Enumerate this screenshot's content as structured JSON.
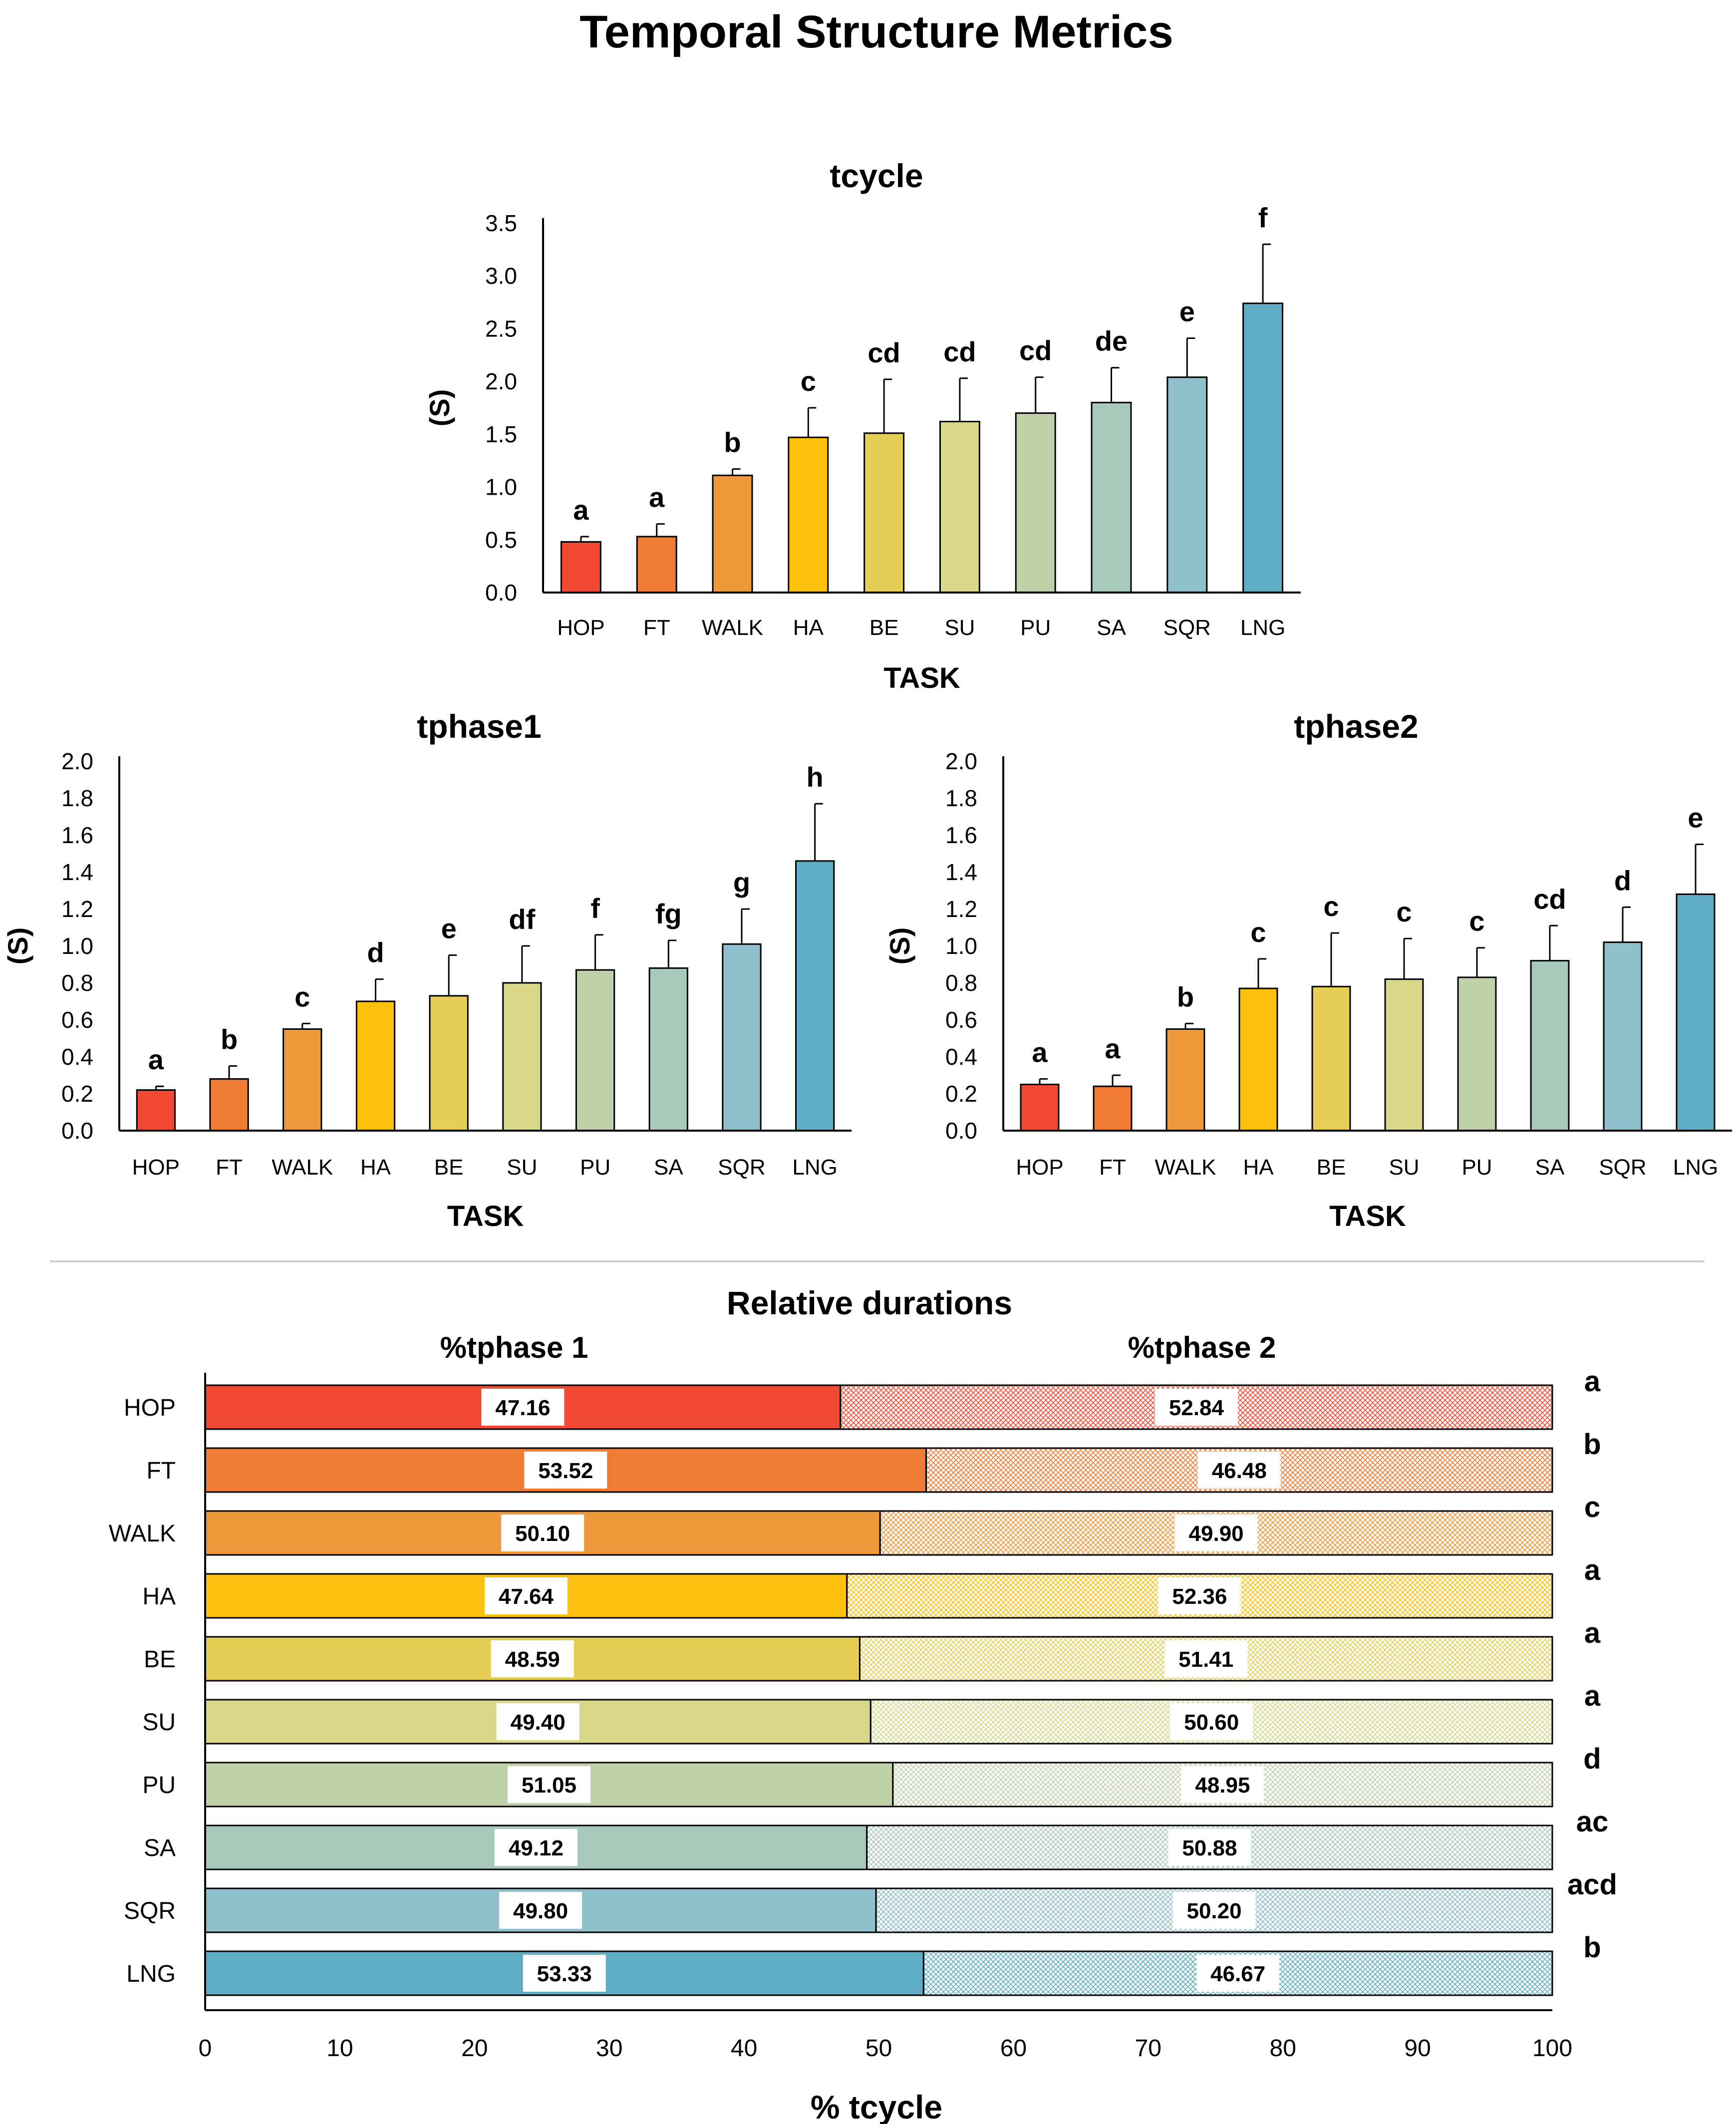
{
  "page_title": "Temporal Structure Metrics",
  "task_order": [
    "HOP",
    "FT",
    "WALK",
    "HA",
    "BE",
    "SU",
    "PU",
    "SA",
    "SQR",
    "LNG"
  ],
  "task_colors": [
    "#f04a35",
    "#f07b35",
    "#ee9a3c",
    "#fcc10e",
    "#e6cd56",
    "#d9d78a",
    "#c1d1a9",
    "#a9c8bc",
    "#8fbfca",
    "#5faec5"
  ],
  "chart_data": [
    {
      "id": "tcycle",
      "type": "bar",
      "title": "tcycle",
      "xlabel": "TASK",
      "ylabel": "(S)",
      "ylim": [
        0,
        3.5
      ],
      "yticks": [
        "0.0",
        "0.5",
        "1.0",
        "1.5",
        "2.0",
        "2.5",
        "3.0",
        "3.5"
      ],
      "categories": [
        "HOP",
        "FT",
        "WALK",
        "HA",
        "BE",
        "SU",
        "PU",
        "SA",
        "SQR",
        "LNG"
      ],
      "values": [
        0.48,
        0.53,
        1.11,
        1.47,
        1.51,
        1.62,
        1.7,
        1.8,
        2.04,
        2.74
      ],
      "errors": [
        0.05,
        0.12,
        0.06,
        0.28,
        0.51,
        0.41,
        0.34,
        0.33,
        0.37,
        0.56
      ],
      "letters": [
        "a",
        "a",
        "b",
        "c",
        "cd",
        "cd",
        "cd",
        "de",
        "e",
        "f"
      ]
    },
    {
      "id": "tphase1",
      "type": "bar",
      "title": "tphase1",
      "xlabel": "TASK",
      "ylabel": "(S)",
      "ylim": [
        0,
        2.0
      ],
      "yticks": [
        "0.0",
        "0.2",
        "0.4",
        "0.6",
        "0.8",
        "1.0",
        "1.2",
        "1.4",
        "1.6",
        "1.8",
        "2.0"
      ],
      "categories": [
        "HOP",
        "FT",
        "WALK",
        "HA",
        "BE",
        "SU",
        "PU",
        "SA",
        "SQR",
        "LNG"
      ],
      "values": [
        0.22,
        0.28,
        0.55,
        0.7,
        0.73,
        0.8,
        0.87,
        0.88,
        1.01,
        1.46
      ],
      "errors": [
        0.02,
        0.07,
        0.03,
        0.12,
        0.22,
        0.2,
        0.19,
        0.15,
        0.19,
        0.31
      ],
      "letters": [
        "a",
        "b",
        "c",
        "d",
        "e",
        "df",
        "f",
        "fg",
        "g",
        "h"
      ]
    },
    {
      "id": "tphase2",
      "type": "bar",
      "title": "tphase2",
      "xlabel": "TASK",
      "ylabel": "(S)",
      "ylim": [
        0,
        2.0
      ],
      "yticks": [
        "0.0",
        "0.2",
        "0.4",
        "0.6",
        "0.8",
        "1.0",
        "1.2",
        "1.4",
        "1.6",
        "1.8",
        "2.0"
      ],
      "categories": [
        "HOP",
        "FT",
        "WALK",
        "HA",
        "BE",
        "SU",
        "PU",
        "SA",
        "SQR",
        "LNG"
      ],
      "values": [
        0.25,
        0.24,
        0.55,
        0.77,
        0.78,
        0.82,
        0.83,
        0.92,
        1.02,
        1.28
      ],
      "errors": [
        0.03,
        0.06,
        0.03,
        0.16,
        0.29,
        0.22,
        0.16,
        0.19,
        0.19,
        0.27
      ],
      "letters": [
        "a",
        "a",
        "b",
        "c",
        "c",
        "c",
        "c",
        "cd",
        "d",
        "e"
      ]
    },
    {
      "id": "relative",
      "type": "bar",
      "orientation": "horizontal-stacked",
      "title": "Relative durations",
      "xlabel": "% tcycle",
      "xlim": [
        0,
        100
      ],
      "xticks": [
        "0",
        "10",
        "20",
        "30",
        "40",
        "50",
        "60",
        "70",
        "80",
        "90",
        "100"
      ],
      "categories": [
        "HOP",
        "FT",
        "WALK",
        "HA",
        "BE",
        "SU",
        "PU",
        "SA",
        "SQR",
        "LNG"
      ],
      "series": [
        {
          "name": "%tphase 1",
          "values": [
            47.16,
            53.52,
            50.1,
            47.64,
            48.59,
            49.4,
            51.05,
            49.12,
            49.8,
            53.33
          ],
          "labels": [
            "47.16",
            "53.52",
            "50.10",
            "47.64",
            "48.59",
            "49.40",
            "51.05",
            "49.12",
            "49.80",
            "53.33"
          ]
        },
        {
          "name": "%tphase 2",
          "values": [
            52.84,
            46.48,
            49.9,
            52.36,
            51.41,
            50.6,
            48.95,
            50.88,
            50.2,
            46.67
          ],
          "labels": [
            "52.84",
            "46.48",
            "49.90",
            "52.36",
            "51.41",
            "50.60",
            "48.95",
            "50.88",
            "50.20",
            "46.67"
          ]
        }
      ],
      "letters": [
        "a",
        "b",
        "c",
        "a",
        "a",
        "a",
        "d",
        "ac",
        "acd",
        "b"
      ]
    }
  ]
}
